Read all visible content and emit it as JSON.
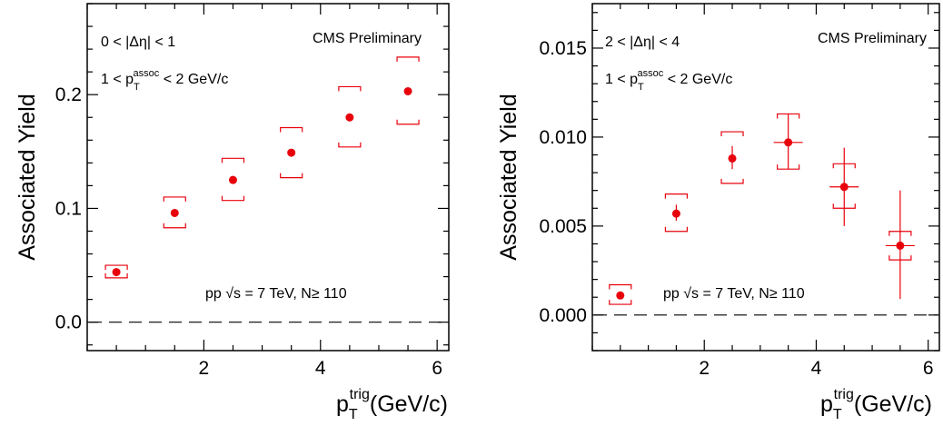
{
  "chart_data": [
    {
      "type": "scatter",
      "xlabel": "p_T^trig(GeV/c)",
      "xlabel_main": "p",
      "xlabel_sub": "T",
      "xlabel_sup": "trig",
      "xlabel_tail": "(GeV/c)",
      "ylabel": "Associated Yield",
      "xlim": [
        0,
        6.2
      ],
      "ylim": [
        -0.025,
        0.28
      ],
      "x_ticks": [
        2,
        4,
        6
      ],
      "x_tick_labels": [
        "2",
        "4",
        "6"
      ],
      "y_ticks": [
        0.0,
        0.1,
        0.2
      ],
      "y_tick_labels": [
        "0.0",
        "0.1",
        "0.2"
      ],
      "annotations": {
        "label": "CMS Preliminary",
        "eta_range": "0 < |Δη| < 1",
        "passoc_lead": "1 < p",
        "passoc_sub": "T",
        "passoc_sup": "assoc",
        "passoc_tail": " < 2 GeV/c",
        "pp_lead": "pp √s = 7 TeV, N",
        "pp_ge": "≥",
        "pp_tail": " 110"
      },
      "series": [
        {
          "x": [
            0.5,
            1.5,
            2.5,
            3.5,
            4.5,
            5.5
          ],
          "y": [
            0.044,
            0.096,
            0.125,
            0.149,
            0.18,
            0.203
          ],
          "sys_low": [
            0.039,
            0.083,
            0.107,
            0.127,
            0.154,
            0.174
          ],
          "sys_high": [
            0.05,
            0.11,
            0.144,
            0.171,
            0.207,
            0.233
          ],
          "stat_low": [
            0.044,
            0.096,
            0.125,
            0.149,
            0.18,
            0.203
          ],
          "stat_high": [
            0.044,
            0.096,
            0.125,
            0.149,
            0.18,
            0.203
          ]
        }
      ]
    },
    {
      "type": "scatter",
      "xlabel": "p_T^trig(GeV/c)",
      "xlabel_main": "p",
      "xlabel_sub": "T",
      "xlabel_sup": "trig",
      "xlabel_tail": "(GeV/c)",
      "ylabel": "Associated Yield",
      "xlim": [
        0,
        6.2
      ],
      "ylim": [
        -0.002,
        0.0175
      ],
      "x_ticks": [
        2,
        4,
        6
      ],
      "x_tick_labels": [
        "2",
        "4",
        "6"
      ],
      "y_ticks": [
        0.0,
        0.005,
        0.01,
        0.015
      ],
      "y_tick_labels": [
        "0.000",
        "0.005",
        "0.010",
        "0.015"
      ],
      "annotations": {
        "label": "CMS Preliminary",
        "eta_range": "2 < |Δη| < 4",
        "passoc_lead": "1 < p",
        "passoc_sub": "T",
        "passoc_sup": "assoc",
        "passoc_tail": " < 2 GeV/c",
        "pp_lead": "pp √s = 7 TeV, N",
        "pp_ge": "≥",
        "pp_tail": " 110"
      },
      "series": [
        {
          "x": [
            0.5,
            1.5,
            2.5,
            3.5,
            4.5,
            5.5
          ],
          "y": [
            0.0011,
            0.0057,
            0.0088,
            0.0097,
            0.0072,
            0.0039
          ],
          "sys_low": [
            0.0006,
            0.0047,
            0.0074,
            0.0082,
            0.006,
            0.0031
          ],
          "sys_high": [
            0.0017,
            0.0068,
            0.0103,
            0.0113,
            0.0085,
            0.0047
          ],
          "stat_low": [
            0.0011,
            0.0053,
            0.0082,
            0.0082,
            0.005,
            0.0009
          ],
          "stat_high": [
            0.0011,
            0.0062,
            0.0095,
            0.0113,
            0.0094,
            0.007
          ]
        }
      ]
    }
  ]
}
